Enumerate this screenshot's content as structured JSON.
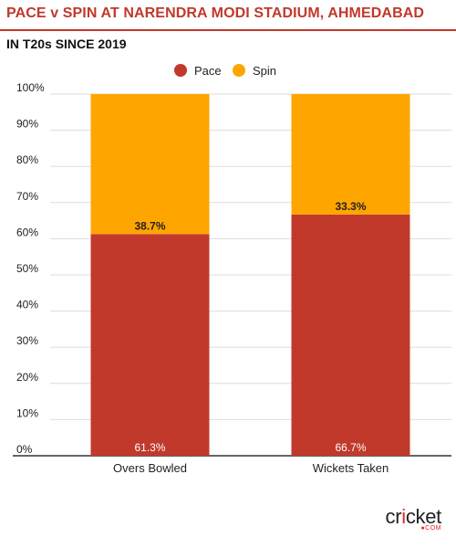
{
  "title": "PACE v SPIN AT NARENDRA MODI STADIUM, AHMEDABAD",
  "subtitle": "IN T20s SINCE 2019",
  "logo": {
    "word_pre": "cr",
    "word_i": "i",
    "word_post": "cket",
    "sub": "●COM"
  },
  "colors": {
    "pace": "#c0392b",
    "spin": "#ffa500",
    "title": "#c0392b",
    "grid": "#dddddd"
  },
  "chart_data": {
    "type": "bar",
    "stacked": true,
    "categories": [
      "Overs Bowled",
      "Wickets Taken"
    ],
    "series": [
      {
        "name": "Pace",
        "values": [
          61.3,
          66.7
        ],
        "labels": [
          "61.3%",
          "66.7%"
        ],
        "color": "#c0392b"
      },
      {
        "name": "Spin",
        "values": [
          38.7,
          33.3
        ],
        "labels": [
          "38.7%",
          "33.3%"
        ],
        "color": "#ffa500"
      }
    ],
    "y_ticks": [
      "0%",
      "10%",
      "20%",
      "30%",
      "40%",
      "50%",
      "60%",
      "70%",
      "80%",
      "90%",
      "100%"
    ],
    "ylim": [
      0,
      100
    ],
    "grid": true,
    "legend": "top-center"
  }
}
